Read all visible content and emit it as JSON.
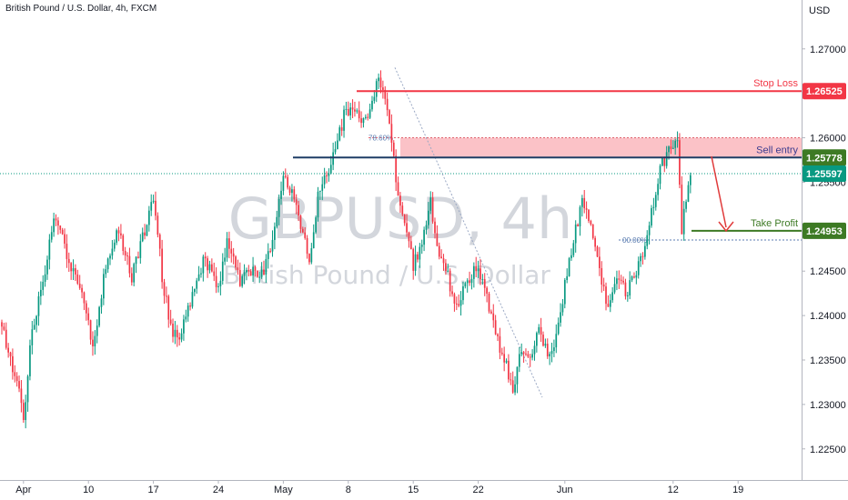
{
  "header": {
    "title": "British Pound / U.S. Dollar, 4h, FXCM"
  },
  "watermark": {
    "symbol": "GBPUSD, 4h",
    "description": "British Pound / U.S. Dollar"
  },
  "chart_data": {
    "type": "candlestick",
    "title": "British Pound / U.S. Dollar, 4h, FXCM",
    "currency": "USD",
    "ylim": [
      1.2215,
      1.2755
    ],
    "y_ticks": [
      1.27,
      1.265,
      1.26,
      1.255,
      1.25,
      1.245,
      1.24,
      1.235,
      1.23,
      1.225
    ],
    "y_tick_labels": [
      "1.27000",
      "1.26500",
      "1.26000",
      "1.25500",
      "1.25000",
      "1.24500",
      "1.24000",
      "1.23500",
      "1.23000",
      "1.22500"
    ],
    "x_ticks": [
      {
        "label": "Apr",
        "i": 10
      },
      {
        "label": "10",
        "i": 40
      },
      {
        "label": "17",
        "i": 70
      },
      {
        "label": "24",
        "i": 100
      },
      {
        "label": "May",
        "i": 130
      },
      {
        "label": "8",
        "i": 160
      },
      {
        "label": "15",
        "i": 190
      },
      {
        "label": "22",
        "i": 220
      },
      {
        "label": "Jun",
        "i": 260
      },
      {
        "label": "12",
        "i": 310
      },
      {
        "label": "19",
        "i": 340
      }
    ],
    "levels": {
      "stop_loss": {
        "label": "Stop Loss",
        "price": 1.26525,
        "tag": "1.26525",
        "color": "#f23645"
      },
      "sell_entry": {
        "label": "Sell entry",
        "price": 1.25778,
        "tag": "1.25778",
        "color": "#131722"
      },
      "current": {
        "price": 1.25597,
        "tag": "1.25597",
        "color": "#089981"
      },
      "take_profit": {
        "label": "Take Profit",
        "price": 1.24953,
        "tag": "1.24953",
        "color": "#3d7a24"
      }
    },
    "zone": {
      "from": 1.2577,
      "to": 1.26
    },
    "fib": {
      "level_78": "78.60%",
      "level_0": "00.00%",
      "price_high": 1.2679,
      "price_low": 1.2308
    },
    "up_color": "#089981",
    "down_color": "#f23645",
    "anchors": [
      [
        0,
        1.2385
      ],
      [
        6,
        1.2335
      ],
      [
        10,
        1.2285
      ],
      [
        14,
        1.2385
      ],
      [
        18,
        1.2425
      ],
      [
        24,
        1.2505
      ],
      [
        28,
        1.2485
      ],
      [
        32,
        1.2455
      ],
      [
        38,
        1.2415
      ],
      [
        42,
        1.2365
      ],
      [
        48,
        1.2455
      ],
      [
        54,
        1.2495
      ],
      [
        60,
        1.2445
      ],
      [
        66,
        1.2495
      ],
      [
        70,
        1.2535
      ],
      [
        74,
        1.2445
      ],
      [
        78,
        1.2385
      ],
      [
        82,
        1.2375
      ],
      [
        88,
        1.2425
      ],
      [
        94,
        1.2465
      ],
      [
        100,
        1.2425
      ],
      [
        104,
        1.2485
      ],
      [
        110,
        1.2435
      ],
      [
        116,
        1.2455
      ],
      [
        120,
        1.2445
      ],
      [
        126,
        1.2495
      ],
      [
        130,
        1.2565
      ],
      [
        134,
        1.2535
      ],
      [
        138,
        1.2505
      ],
      [
        142,
        1.2455
      ],
      [
        146,
        1.2535
      ],
      [
        150,
        1.2555
      ],
      [
        154,
        1.2585
      ],
      [
        158,
        1.2625
      ],
      [
        162,
        1.2635
      ],
      [
        166,
        1.2615
      ],
      [
        170,
        1.2635
      ],
      [
        174,
        1.2665
      ],
      [
        178,
        1.2635
      ],
      [
        182,
        1.2555
      ],
      [
        186,
        1.2505
      ],
      [
        190,
        1.2455
      ],
      [
        194,
        1.2485
      ],
      [
        198,
        1.2525
      ],
      [
        202,
        1.2465
      ],
      [
        206,
        1.2445
      ],
      [
        210,
        1.2405
      ],
      [
        214,
        1.2435
      ],
      [
        220,
        1.2455
      ],
      [
        224,
        1.2425
      ],
      [
        228,
        1.2375
      ],
      [
        232,
        1.2355
      ],
      [
        236,
        1.2315
      ],
      [
        240,
        1.2365
      ],
      [
        244,
        1.2345
      ],
      [
        248,
        1.2385
      ],
      [
        252,
        1.2355
      ],
      [
        256,
        1.2375
      ],
      [
        260,
        1.2435
      ],
      [
        264,
        1.2485
      ],
      [
        268,
        1.2525
      ],
      [
        272,
        1.2505
      ],
      [
        276,
        1.2455
      ],
      [
        280,
        1.2405
      ],
      [
        284,
        1.2445
      ],
      [
        288,
        1.2425
      ],
      [
        292,
        1.2445
      ],
      [
        296,
        1.2465
      ],
      [
        300,
        1.2515
      ],
      [
        304,
        1.2565
      ],
      [
        308,
        1.2585
      ],
      [
        312,
        1.2595
      ],
      [
        314,
        1.2495
      ],
      [
        316,
        1.2535
      ],
      [
        318,
        1.2558
      ]
    ]
  }
}
